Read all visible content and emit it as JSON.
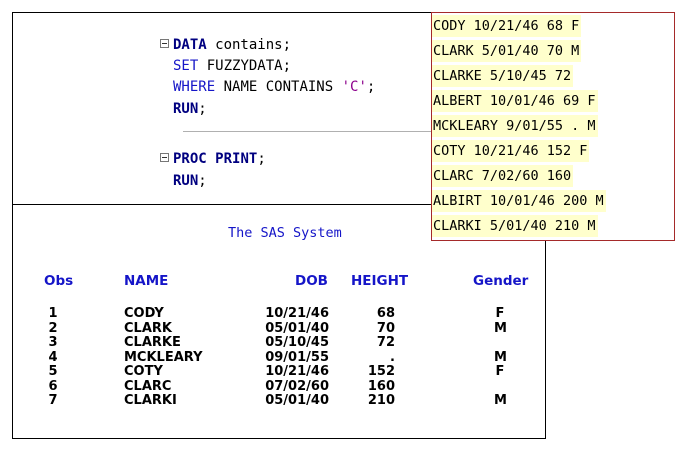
{
  "editor": {
    "lines": [
      {
        "parts": [
          {
            "t": "DATA",
            "c": "kw"
          },
          {
            "t": " contains;",
            "c": "plain"
          }
        ]
      },
      {
        "parts": [
          {
            "t": "SET",
            "c": "blue"
          },
          {
            "t": " FUZZYDATA;",
            "c": "plain"
          }
        ]
      },
      {
        "parts": [
          {
            "t": "WHERE",
            "c": "blue"
          },
          {
            "t": " NAME CONTAINS ",
            "c": "plain"
          },
          {
            "t": "'C'",
            "c": "str"
          },
          {
            "t": ";",
            "c": "plain"
          }
        ]
      },
      {
        "parts": [
          {
            "t": "RUN",
            "c": "kw"
          },
          {
            "t": ";",
            "c": "plain"
          }
        ]
      },
      {
        "parts": [
          {
            "t": "PROC",
            "c": "kw"
          },
          {
            "t": " ",
            "c": "plain"
          },
          {
            "t": "PRINT",
            "c": "kw"
          },
          {
            "t": ";",
            "c": "plain"
          }
        ]
      },
      {
        "parts": [
          {
            "t": "RUN",
            "c": "kw"
          },
          {
            "t": ";",
            "c": "plain"
          }
        ]
      }
    ]
  },
  "data_panel": {
    "rows": [
      "CODY 10/21/46 68 F",
      "CLARK 5/01/40 70 M",
      "CLARKE 5/10/45 72",
      "ALBERT 10/01/46 69 F",
      "MCKLEARY 9/01/55 . M",
      "COTY 10/21/46 152 F",
      "CLARC 7/02/60 160",
      "ALBIRT 10/01/46 200 M",
      "CLARKI 5/01/40 210 M"
    ]
  },
  "output": {
    "title": "The SAS System",
    "columns": [
      "Obs",
      "NAME",
      "DOB",
      "HEIGHT",
      "Gender"
    ],
    "rows": [
      [
        "1",
        "CODY",
        "10/21/46",
        "68",
        "F"
      ],
      [
        "2",
        "CLARK",
        "05/01/40",
        "70",
        "M"
      ],
      [
        "3",
        "CLARKE",
        "05/10/45",
        "72",
        ""
      ],
      [
        "4",
        "MCKLEARY",
        "09/01/55",
        ".",
        "M"
      ],
      [
        "5",
        "COTY",
        "10/21/46",
        "152",
        "F"
      ],
      [
        "6",
        "CLARC",
        "07/02/60",
        "160",
        ""
      ],
      [
        "7",
        "CLARKI",
        "05/01/40",
        "210",
        "M"
      ]
    ]
  },
  "colors": {
    "keyword": "#000080",
    "statement": "#1515c8",
    "string": "#8c008c",
    "data_highlight": "#ffffcc",
    "panel_border": "#a52a2a"
  }
}
